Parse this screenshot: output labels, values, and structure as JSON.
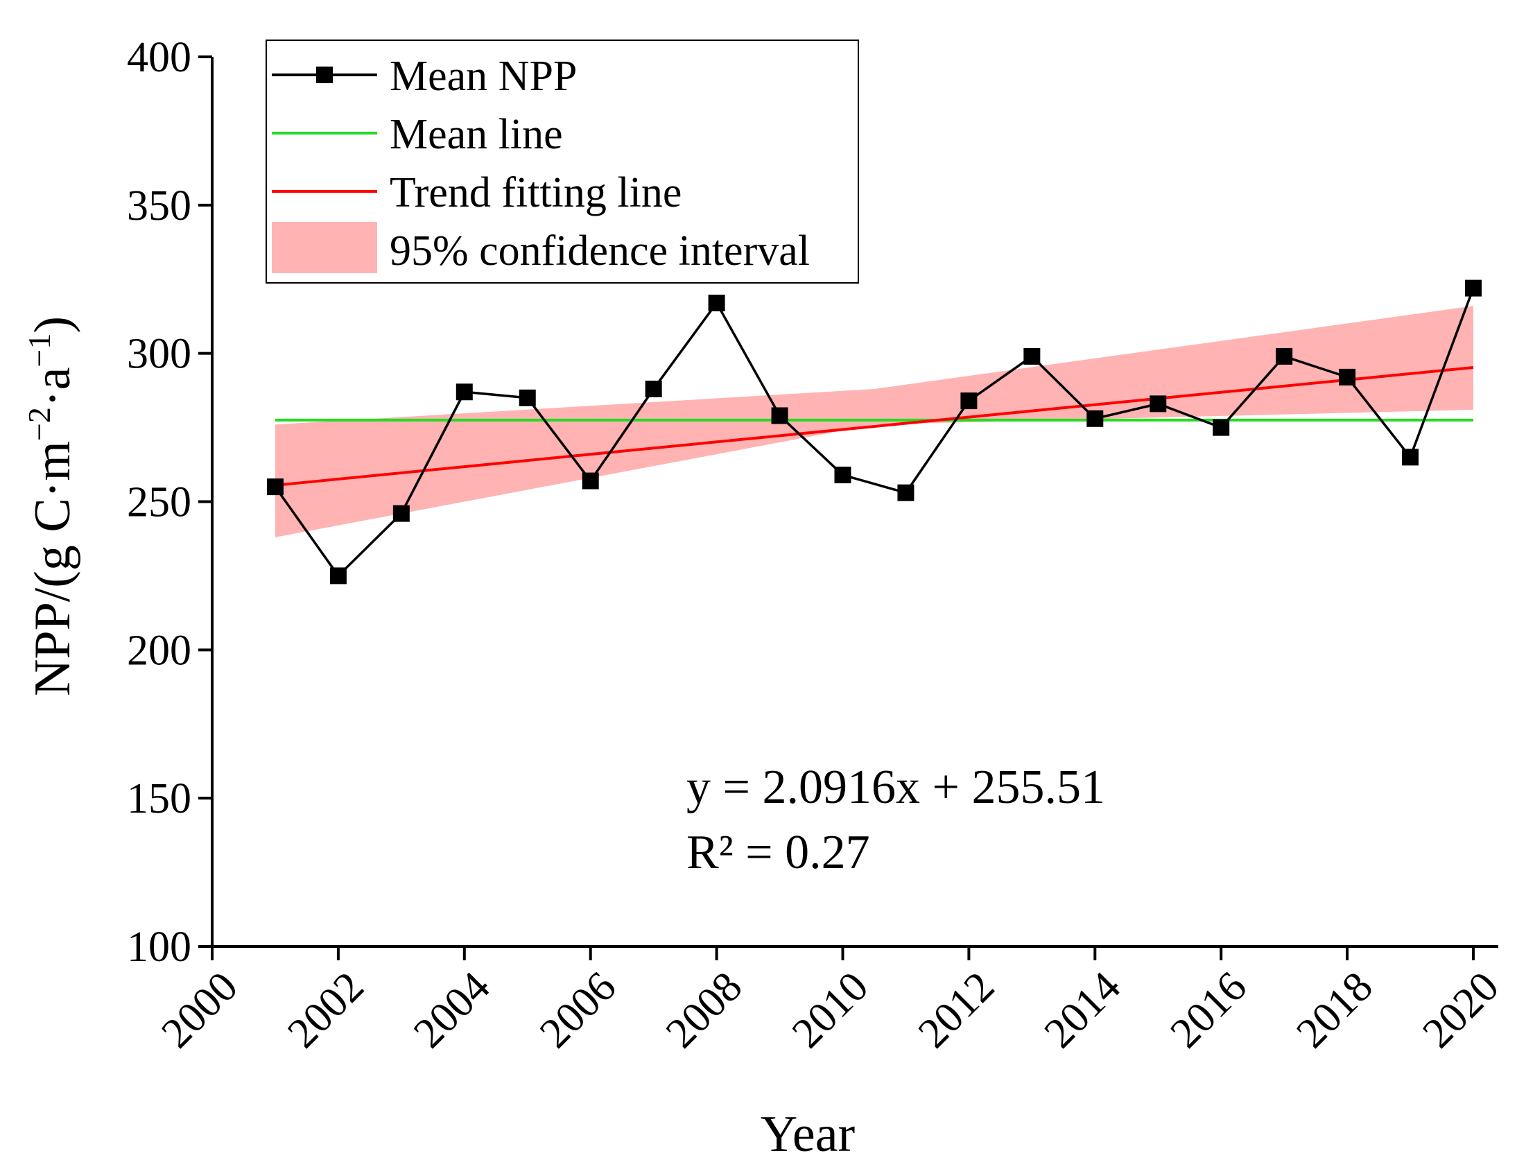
{
  "chart_data": {
    "type": "line",
    "title": "",
    "xlabel": "Year",
    "ylabel": {
      "main": "NPP/(g C·m",
      "exp1": "−2",
      "mid": "·a",
      "exp2": "−1",
      "close": ")"
    },
    "xlim": [
      2000,
      2020
    ],
    "ylim": [
      100,
      400
    ],
    "x_ticks": [
      "2000",
      "2002",
      "2004",
      "2006",
      "2008",
      "2010",
      "2012",
      "2014",
      "2016",
      "2018",
      "2020"
    ],
    "y_ticks": [
      "100",
      "150",
      "200",
      "250",
      "300",
      "350",
      "400"
    ],
    "grid": false,
    "legend_position": "top-left",
    "x": [
      2001,
      2002,
      2003,
      2004,
      2005,
      2006,
      2007,
      2008,
      2009,
      2010,
      2011,
      2012,
      2013,
      2014,
      2015,
      2016,
      2017,
      2018,
      2019,
      2020
    ],
    "series": [
      {
        "name": "Mean NPP",
        "color": "#000000",
        "values": [
          255,
          225,
          246,
          287,
          285,
          257,
          288,
          317,
          279,
          259,
          253,
          284,
          299,
          278,
          283,
          275,
          299,
          292,
          265,
          322
        ]
      },
      {
        "name": "Mean line",
        "color": "#22dd22",
        "value": 277.5
      },
      {
        "name": "Trend fitting line",
        "color": "#ff0000",
        "equation": {
          "slope": 2.0916,
          "intercept": 255.51
        }
      },
      {
        "name": "95% confidence interval",
        "color": "#ffb3b3",
        "x": [
          2001,
          2010.5,
          2020
        ],
        "lower": [
          238,
          276,
          281
        ],
        "upper": [
          276,
          288,
          316
        ]
      }
    ],
    "legend": [
      "Mean NPP",
      "Mean line",
      "Trend fitting line",
      "95% confidence interval"
    ],
    "annotations": [
      "y = 2.0916x + 255.51",
      "R² = 0.27"
    ]
  }
}
